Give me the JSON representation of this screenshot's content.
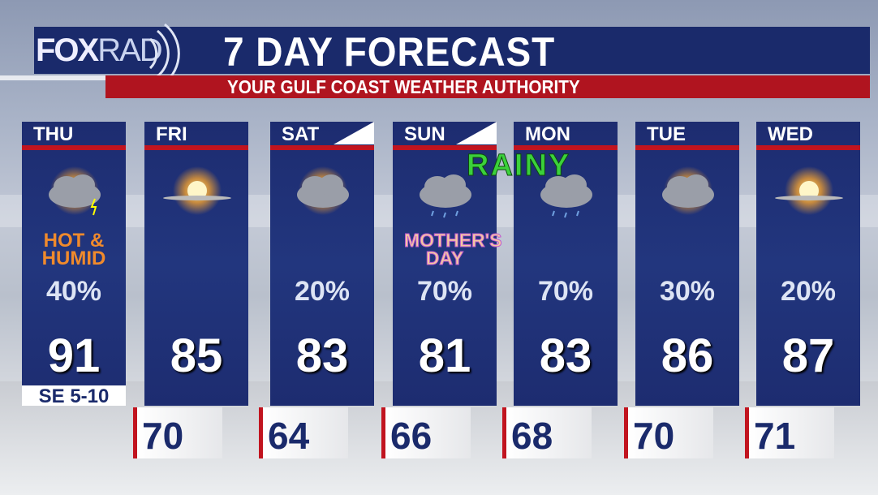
{
  "header": {
    "logo": "FOX",
    "logo_suffix": "RAD",
    "title": "7 DAY FORECAST",
    "subtitle": "YOUR GULF COAST WEATHER AUTHORITY"
  },
  "days": [
    {
      "day": "THU",
      "icon": "thunderstorm-partly-sunny-icon",
      "note": "HOT & HUMID",
      "rain": "40%",
      "high": "91",
      "wind": "SE 5-10"
    },
    {
      "day": "FRI",
      "icon": "sunny-icon",
      "rain": "",
      "high": "85",
      "low": "70"
    },
    {
      "day": "SAT",
      "icon": "partly-sunny-icon",
      "rain": "20%",
      "high": "83",
      "low": "64"
    },
    {
      "day": "SUN",
      "icon": "rain-cloud-icon",
      "note": "MOTHER'S DAY",
      "rain": "70%",
      "high": "81",
      "low": "66"
    },
    {
      "day": "MON",
      "icon": "rain-cloud-icon",
      "rain": "70%",
      "high": "83",
      "low": "68"
    },
    {
      "day": "TUE",
      "icon": "partly-sunny-icon",
      "rain": "30%",
      "high": "86",
      "low": "70"
    },
    {
      "day": "WED",
      "icon": "sunny-icon",
      "rain": "20%",
      "high": "87",
      "low": "71"
    }
  ],
  "banner": "RAINY",
  "colors": {
    "panel": "#1d2c70",
    "accent_red": "#c1141f",
    "note_orange": "#f08a2c",
    "rainy_green": "#3bd13b"
  }
}
